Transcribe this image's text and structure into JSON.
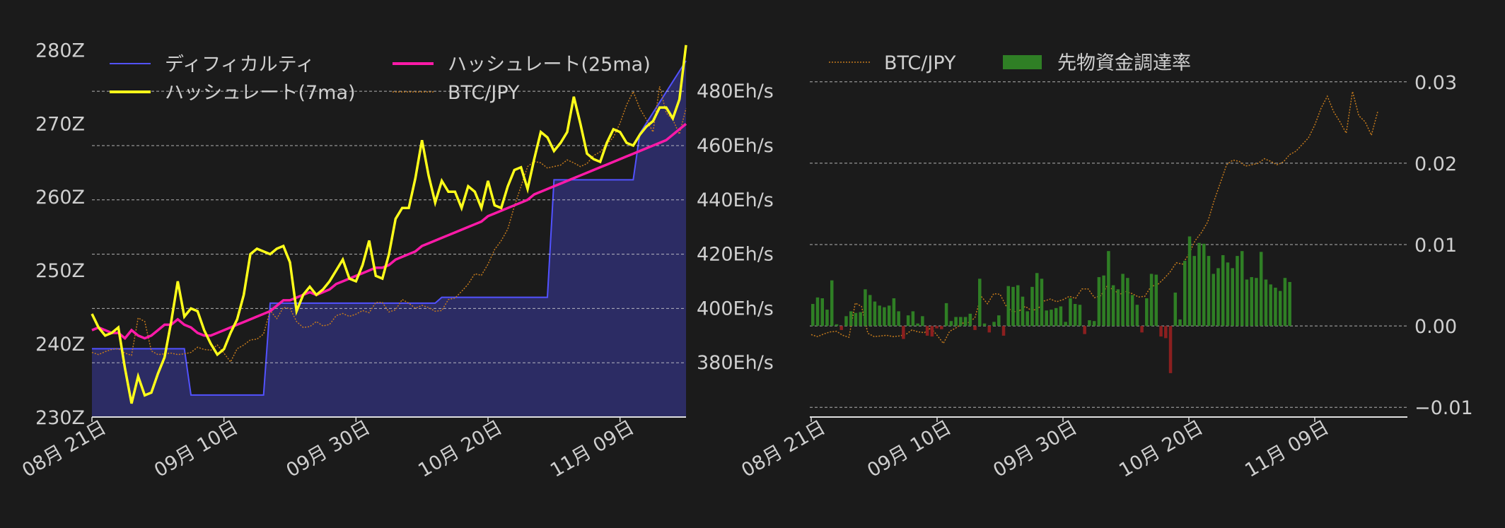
{
  "theme": {
    "background": "#1b1b1b",
    "text": "#cfcfcf",
    "grid": "#d8d8d8",
    "difficulty_fill": "#2c2c64",
    "difficulty_line": "#5252ff",
    "hash7": "#ffff1a",
    "hash25": "#ff1aa8",
    "btc": "#c47a1c",
    "funding_pos": "#2f7f25",
    "funding_neg": "#8c1f1f"
  },
  "chart_data": [
    {
      "type": "line",
      "title": "",
      "x_tick_labels": [
        "08月 21日",
        "09月 10日",
        "09月 30日",
        "10月 20日",
        "11月 09日"
      ],
      "x_tick_days": [
        0,
        20,
        40,
        60,
        80
      ],
      "y_left": {
        "ylim": [
          230,
          281
        ],
        "ticks": [
          230,
          240,
          250,
          260,
          270,
          280
        ],
        "tick_labels": [
          "230Z",
          "240Z",
          "250Z",
          "260Z",
          "270Z",
          "280Z"
        ]
      },
      "y_right": {
        "ylim": [
          360,
          498
        ],
        "ticks": [
          380,
          400,
          420,
          440,
          460,
          480
        ],
        "tick_labels": [
          "380Eh/s",
          "400Eh/s",
          "420Eh/s",
          "440Eh/s",
          "460Eh/s",
          "480Eh/s"
        ]
      },
      "legend": {
        "placement": "top-left",
        "entries": [
          "ディフィカルティ",
          "ハッシュレート(7ma)",
          "ハッシュレート(25ma)",
          "BTC/JPY"
        ]
      },
      "series": [
        {
          "name": "ディフィカルティ",
          "axis": "left",
          "style": "filled-step",
          "x": [
            0,
            14,
            15,
            26,
            27,
            52,
            53,
            69,
            70,
            82,
            83,
            90
          ],
          "values": [
            239.3,
            239.3,
            233.0,
            233.0,
            245.5,
            245.5,
            246.3,
            246.3,
            262.3,
            262.3,
            268.6,
            278.5
          ]
        },
        {
          "name": "ハッシュレート(7ma)",
          "axis": "right",
          "style": "solid",
          "values": [
            398,
            393,
            390,
            391,
            393,
            378,
            365,
            375,
            368,
            369,
            376,
            382,
            395,
            410,
            397,
            400,
            399,
            392,
            387,
            383,
            385,
            391,
            396,
            405,
            420,
            422,
            421,
            420,
            422,
            423,
            417,
            399,
            405,
            408,
            405,
            407,
            410,
            414,
            418,
            411,
            410,
            416,
            425,
            412,
            411,
            420,
            433,
            437,
            437,
            448,
            462,
            449,
            439,
            447,
            443,
            443,
            437,
            445,
            443,
            437,
            447,
            438,
            437,
            445,
            451,
            452,
            444,
            455,
            465,
            463,
            458,
            461,
            465,
            478,
            468,
            457,
            455,
            454,
            461,
            466,
            465,
            461,
            460,
            464,
            467,
            469,
            474,
            474,
            470,
            477,
            497
          ]
        },
        {
          "name": "ハッシュレート(25ma)",
          "axis": "right",
          "style": "solid",
          "values": [
            392,
            393,
            392,
            391,
            391,
            389,
            392,
            390,
            389,
            390,
            392,
            394,
            394,
            396,
            394,
            393,
            391,
            390,
            390,
            391,
            392,
            393,
            394,
            395,
            396,
            397,
            398,
            399,
            401,
            403,
            403,
            404,
            405,
            406,
            405,
            406,
            407,
            409,
            410,
            411,
            412,
            413,
            414,
            415,
            415,
            416,
            418,
            419,
            420,
            421,
            423,
            424,
            425,
            426,
            427,
            428,
            429,
            430,
            431,
            432,
            434,
            435,
            436,
            437,
            438,
            439,
            440,
            442,
            443,
            444,
            445,
            446,
            447,
            448,
            449,
            450,
            451,
            452,
            453,
            454,
            455,
            456,
            457,
            458,
            459,
            460,
            461,
            462,
            464,
            466,
            468
          ]
        },
        {
          "name": "BTC/JPY",
          "axis": "left",
          "style": "dotted",
          "values": [
            238.8,
            238.5,
            238.9,
            239.2,
            239.3,
            238.7,
            238.4,
            243.5,
            243.0,
            239.0,
            238.5,
            238.6,
            238.7,
            238.5,
            238.6,
            238.8,
            239.5,
            239.2,
            239.1,
            239.8,
            238.7,
            237.5,
            239.3,
            239.8,
            240.5,
            240.6,
            241.3,
            244.5,
            243.4,
            244.9,
            244.8,
            243.0,
            242.2,
            242.3,
            243.0,
            242.4,
            242.6,
            243.8,
            244.1,
            243.7,
            244.0,
            244.5,
            244.2,
            245.6,
            245.6,
            244.3,
            244.6,
            246.0,
            245.5,
            244.8,
            245.2,
            244.9,
            244.4,
            244.5,
            246.0,
            246.2,
            247.1,
            248.1,
            249.5,
            249.3,
            250.8,
            252.8,
            254.0,
            255.6,
            258.7,
            261.4,
            264.1,
            264.8,
            264.6,
            263.9,
            264.1,
            264.3,
            265.0,
            264.6,
            264.1,
            264.5,
            265.6,
            266.1,
            267.1,
            268.1,
            270.0,
            272.5,
            274.3,
            272.0,
            270.5,
            268.8,
            275.0,
            271.4,
            270.5,
            268.5,
            272.0
          ]
        }
      ]
    },
    {
      "type": "bar",
      "title": "",
      "x_tick_labels": [
        "08月 21日",
        "09月 10日",
        "09月 30日",
        "10月 20日",
        "11月 09日"
      ],
      "x_tick_days": [
        0,
        20,
        40,
        60,
        80
      ],
      "y_right": {
        "ylim": [
          -0.0105,
          0.0305
        ],
        "ticks": [
          -0.01,
          0.0,
          0.01,
          0.02,
          0.03
        ],
        "tick_labels": [
          "−0.01",
          "0.00",
          "0.01",
          "0.02",
          "0.03"
        ]
      },
      "legend": {
        "placement": "top-left",
        "entries": [
          "BTC/JPY",
          "先物資金調達率"
        ]
      },
      "series": [
        {
          "name": "先物資金調達率",
          "style": "bars",
          "values": [
            0.0027,
            0.0035,
            0.0034,
            0.002,
            0.0056,
            0.0002,
            -0.0005,
            0.0012,
            0.0018,
            0.0016,
            0.0017,
            0.0045,
            0.0038,
            0.003,
            0.0025,
            0.0023,
            0.0025,
            0.0034,
            0.0018,
            -0.0016,
            0.0013,
            0.0018,
            0.0003,
            0.0012,
            -0.0012,
            -0.0013,
            -0.0003,
            -0.0004,
            0.0028,
            0.0006,
            0.0011,
            0.0011,
            0.0011,
            0.0015,
            -0.0005,
            0.0058,
            0.0003,
            -0.0008,
            0.0005,
            0.0013,
            -0.0012,
            0.0049,
            0.0048,
            0.005,
            0.0036,
            0.0018,
            0.0048,
            0.0065,
            0.0058,
            0.0019,
            0.002,
            0.0022,
            0.0024,
            0.0005,
            0.0034,
            0.0027,
            0.0026,
            -0.001,
            0.0007,
            0.0006,
            0.006,
            0.0062,
            0.0092,
            0.005,
            0.0045,
            0.0064,
            0.0059,
            0.0038,
            0.0026,
            -0.0008,
            0.0034,
            0.0064,
            0.0063,
            -0.0013,
            -0.0015,
            -0.0058,
            0.0041,
            0.0008,
            0.008,
            0.011,
            0.0086,
            0.0102,
            0.0101,
            0.0086,
            0.0064,
            0.0071,
            0.0087,
            0.0078,
            0.0071,
            0.0086,
            0.0092,
            0.0057,
            0.006,
            0.0059,
            0.0091,
            0.0057,
            0.0051,
            0.0047,
            0.0043,
            0.0059,
            0.0054
          ]
        },
        {
          "name": "BTC/JPY",
          "style": "dotted",
          "values": [
            238.8,
            238.5,
            238.9,
            239.2,
            239.3,
            238.7,
            238.4,
            243.5,
            243.0,
            239.0,
            238.5,
            238.6,
            238.7,
            238.5,
            238.6,
            238.8,
            239.5,
            239.2,
            239.1,
            239.8,
            238.7,
            237.5,
            239.3,
            239.8,
            240.5,
            240.6,
            241.3,
            244.5,
            243.4,
            244.9,
            244.8,
            243.0,
            242.2,
            242.3,
            243.0,
            242.4,
            242.6,
            243.8,
            244.1,
            243.7,
            244.0,
            244.5,
            244.2,
            245.6,
            245.6,
            244.3,
            244.6,
            246.0,
            245.5,
            244.8,
            245.2,
            244.9,
            244.4,
            244.5,
            246.0,
            246.2,
            247.1,
            248.1,
            249.5,
            249.3,
            250.8,
            252.8,
            254.0,
            255.6,
            258.7,
            261.4,
            264.1,
            264.8,
            264.6,
            263.9,
            264.1,
            264.3,
            265.0,
            264.6,
            264.1,
            264.5,
            265.6,
            266.1,
            267.1,
            268.1,
            270.0,
            272.5,
            274.3,
            272.0,
            270.5,
            268.8,
            275.0,
            271.4,
            270.5,
            268.5,
            272.0
          ]
        }
      ]
    }
  ]
}
